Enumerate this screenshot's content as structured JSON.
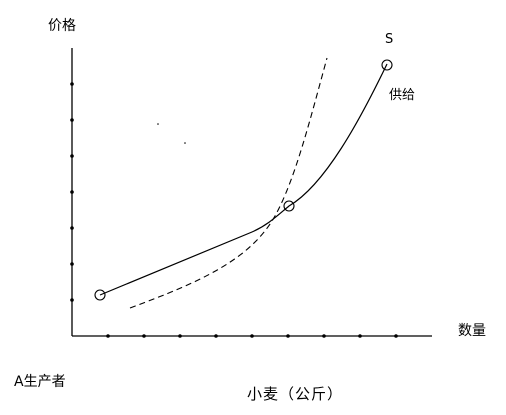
{
  "labels": {
    "y_axis": "价格",
    "x_axis": "数量",
    "curve_letter": "S",
    "curve_name": "供给",
    "producer": "A生产者",
    "x_title": "小麦（公斤）"
  },
  "colors": {
    "stroke": "#000000",
    "background": "#ffffff"
  },
  "diagram": {
    "y_tick_count": 7,
    "x_tick_count": 9,
    "solid_curve": "supply",
    "dashed_curve": "steeper-supply",
    "marked_points": 3
  }
}
